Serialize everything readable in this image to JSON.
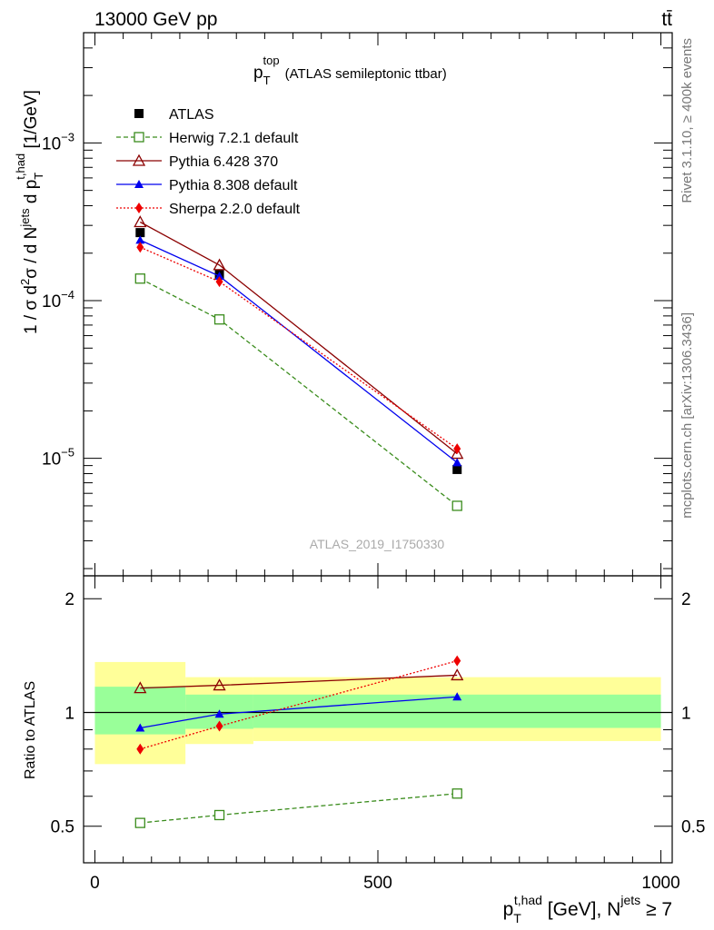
{
  "header": {
    "energy_label": "13000 GeV pp",
    "process_label": "tt̄"
  },
  "side_labels": {
    "rivet": "Rivet 3.1.10, ≥ 400k events",
    "mcplots": "mcplots.cern.ch [arXiv:1306.3436]"
  },
  "chart_data": [
    {
      "type": "line",
      "title": "p_T^top (ATLAS semileptonic ttbar)",
      "title_parts": {
        "main": "p",
        "sub": "T",
        "sup": "top",
        "rest": "(ATLAS semileptonic ttbar)"
      },
      "watermark": "ATLAS_2019_I1750330",
      "ylabel": "1 / σ d²σ / d N^jets d p_T^t,had [1/GeV]",
      "ylabel_parts": {
        "a": "1 / σ d",
        "a_sup": "2",
        "b": "σ / d N",
        "b_sup": "jets",
        "c": " d p",
        "c_sub": "T",
        "c_sup": "t,had",
        "d": " [1/GeV]"
      },
      "yscale": "log",
      "ylim": [
        1.8e-06,
        0.005
      ],
      "xlim": [
        -20,
        1020
      ],
      "ytick_labels": [
        {
          "value": 0.001,
          "base": "10",
          "exp": "−3"
        },
        {
          "value": 0.0001,
          "base": "10",
          "exp": "−4"
        },
        {
          "value": 1e-05,
          "base": "10",
          "exp": "−5"
        }
      ],
      "legend_position": "top-left",
      "x": [
        80,
        220,
        640
      ],
      "series": [
        {
          "name": "ATLAS",
          "values": [
            0.00027,
            0.000146,
            8.5e-06
          ],
          "color": "#000000",
          "marker": "square-filled",
          "dash": "none",
          "is_data": true
        },
        {
          "name": "Herwig 7.2.1 default",
          "values": [
            0.000138,
            7.6e-05,
            5e-06
          ],
          "color": "#3a8c1c",
          "marker": "square-open",
          "dash": "5,3"
        },
        {
          "name": "Pythia 6.428 370",
          "values": [
            0.000315,
            0.000168,
            1.07e-05
          ],
          "color": "#8b0000",
          "marker": "triangle-open",
          "dash": "none"
        },
        {
          "name": "Pythia 8.308 default",
          "values": [
            0.000242,
            0.000143,
            9.4e-06
          ],
          "color": "#0000ee",
          "marker": "triangle-filled",
          "dash": "none"
        },
        {
          "name": "Sherpa 2.2.0 default",
          "values": [
            0.000218,
            0.000132,
            1.15e-05
          ],
          "color": "#ee0000",
          "marker": "diamond-filled",
          "dash": "2,2"
        }
      ]
    },
    {
      "type": "line",
      "ylabel": "Ratio to ATLAS",
      "xlabel": "p_T^t,had [GeV], N^jets ≥ 7",
      "xlabel_parts": {
        "a": "p",
        "a_sub": "T",
        "a_sup": "t,had",
        "b": " [GeV], N",
        "b_sup": "jets",
        "c": " ≥ 7"
      },
      "yscale": "log",
      "ylim": [
        0.4,
        2.3
      ],
      "xlim": [
        -20,
        1020
      ],
      "ytick_labels": [
        {
          "value": 2,
          "label": "2"
        },
        {
          "value": 1,
          "label": "1"
        },
        {
          "value": 0.5,
          "label": "0.5"
        }
      ],
      "xtick_labels": [
        {
          "value": 0,
          "label": "0"
        },
        {
          "value": 500,
          "label": "500"
        },
        {
          "value": 1000,
          "label": "1000"
        }
      ],
      "bands": [
        {
          "x0": 0,
          "x1": 160,
          "stat_lo": 0.875,
          "stat_hi": 1.17,
          "tot_lo": 0.73,
          "tot_hi": 1.36
        },
        {
          "x0": 160,
          "x1": 280,
          "stat_lo": 0.905,
          "stat_hi": 1.115,
          "tot_lo": 0.825,
          "tot_hi": 1.24
        },
        {
          "x0": 280,
          "x1": 1000,
          "stat_lo": 0.91,
          "stat_hi": 1.115,
          "tot_lo": 0.84,
          "tot_hi": 1.24
        }
      ],
      "band_colors": {
        "stat": "#99ff99",
        "total": "#ffff99"
      },
      "x": [
        80,
        220,
        640
      ],
      "series": [
        {
          "name": "Herwig 7.2.1 default",
          "values": [
            0.51,
            0.535,
            0.61
          ],
          "color": "#3a8c1c",
          "marker": "square-open",
          "dash": "5,3"
        },
        {
          "name": "Pythia 6.428 370",
          "values": [
            1.16,
            1.18,
            1.255
          ],
          "color": "#8b0000",
          "marker": "triangle-open",
          "dash": "none"
        },
        {
          "name": "Pythia 8.308 default",
          "values": [
            0.91,
            0.99,
            1.1
          ],
          "color": "#0000ee",
          "marker": "triangle-filled",
          "dash": "none"
        },
        {
          "name": "Sherpa 2.2.0 default",
          "values": [
            0.8,
            0.92,
            1.37
          ],
          "color": "#ee0000",
          "marker": "diamond-filled",
          "dash": "2,2"
        }
      ]
    }
  ]
}
